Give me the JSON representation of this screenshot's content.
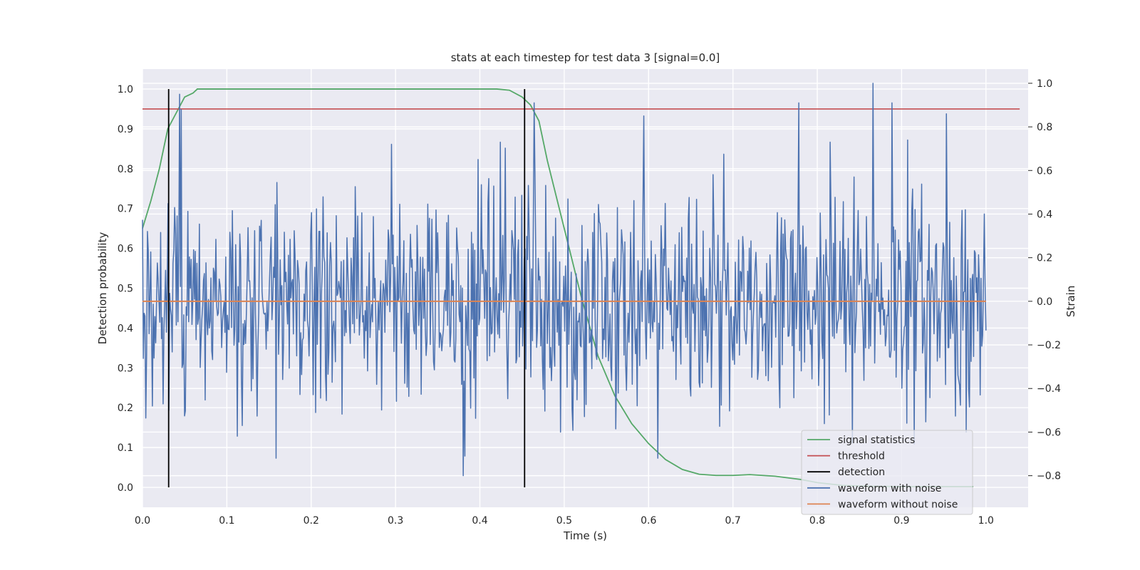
{
  "chart_data": {
    "type": "line",
    "title": "stats at each timestep for test data 3 [signal=0.0]",
    "xlabel": "Time (s)",
    "ylabel": "Detection probability",
    "y2label": "Strain",
    "xlim": [
      0.0,
      1.05
    ],
    "ylim": [
      -0.05,
      1.05
    ],
    "y2lim": [
      -0.945,
      1.065
    ],
    "xticks": [
      "0.0",
      "0.1",
      "0.2",
      "0.3",
      "0.4",
      "0.5",
      "0.6",
      "0.7",
      "0.8",
      "0.9",
      "1.0"
    ],
    "yticks": [
      "0.0",
      "0.1",
      "0.2",
      "0.3",
      "0.4",
      "0.5",
      "0.6",
      "0.7",
      "0.8",
      "0.9",
      "1.0"
    ],
    "y2ticks": [
      "−0.8",
      "−0.6",
      "−0.4",
      "−0.2",
      "0.0",
      "0.2",
      "0.4",
      "0.6",
      "0.8",
      "1.0"
    ],
    "grid": true,
    "legend_position": "lower-right",
    "colors": {
      "background": "#eaeaf2",
      "grid": "#ffffff",
      "signal_statistics": "#55a868",
      "threshold": "#c44e52",
      "detection": "#000000",
      "waveform_with_noise": "#4c72b0",
      "waveform_without_noise": "#dd8452"
    },
    "series": [
      {
        "name": "signal statistics",
        "axis": "left",
        "x": [
          0.0,
          0.01,
          0.02,
          0.03,
          0.04,
          0.05,
          0.06,
          0.065,
          0.1,
          0.2,
          0.3,
          0.4,
          0.42,
          0.435,
          0.45,
          0.46,
          0.47,
          0.48,
          0.5,
          0.52,
          0.54,
          0.56,
          0.58,
          0.6,
          0.62,
          0.64,
          0.66,
          0.68,
          0.7,
          0.72,
          0.75,
          0.78,
          0.8,
          0.83,
          0.86,
          0.9,
          0.95,
          0.985
        ],
        "y": [
          0.65,
          0.72,
          0.8,
          0.9,
          0.94,
          0.98,
          0.99,
          1.0,
          1.0,
          1.0,
          1.0,
          1.0,
          1.0,
          0.997,
          0.98,
          0.96,
          0.92,
          0.82,
          0.65,
          0.48,
          0.33,
          0.23,
          0.16,
          0.11,
          0.07,
          0.045,
          0.033,
          0.03,
          0.03,
          0.032,
          0.028,
          0.02,
          0.012,
          0.005,
          0.003,
          0.002,
          0.002,
          0.002
        ]
      },
      {
        "name": "threshold",
        "axis": "left",
        "x": [
          0.0,
          1.04
        ],
        "y": [
          0.95,
          0.95
        ]
      },
      {
        "name": "detection",
        "axis": "left",
        "type": "vlines",
        "x": [
          0.031,
          0.453
        ],
        "ymin": 0.0,
        "ymax": 1.0
      },
      {
        "name": "waveform with noise",
        "axis": "right",
        "x_start": 0.0,
        "x_end": 1.0,
        "n_points": 1024,
        "seed": 3,
        "std": 0.25,
        "clip": [
          -0.82,
          1.0
        ],
        "peaks": [
          [
            0.031,
            -0.5
          ],
          [
            0.038,
            0.43
          ],
          [
            0.044,
            0.95
          ],
          [
            0.046,
            0.88
          ],
          [
            0.158,
            -0.72
          ],
          [
            0.295,
            0.72
          ],
          [
            0.38,
            -0.8
          ],
          [
            0.382,
            -0.71
          ],
          [
            0.424,
            0.73
          ],
          [
            0.464,
            0.91
          ],
          [
            0.496,
            -0.6
          ],
          [
            0.594,
            0.85
          ],
          [
            0.611,
            -0.72
          ],
          [
            0.778,
            0.91
          ],
          [
            0.815,
            0.73
          ],
          [
            0.842,
            -0.65
          ],
          [
            0.866,
            1.0
          ],
          [
            0.889,
            0.91
          ],
          [
            0.907,
            0.74
          ],
          [
            0.953,
            0.86
          ],
          [
            0.977,
            -0.6
          ]
        ]
      },
      {
        "name": "waveform without noise",
        "axis": "right",
        "x": [
          0.0,
          1.0
        ],
        "y": [
          0.0,
          0.0
        ]
      }
    ]
  }
}
